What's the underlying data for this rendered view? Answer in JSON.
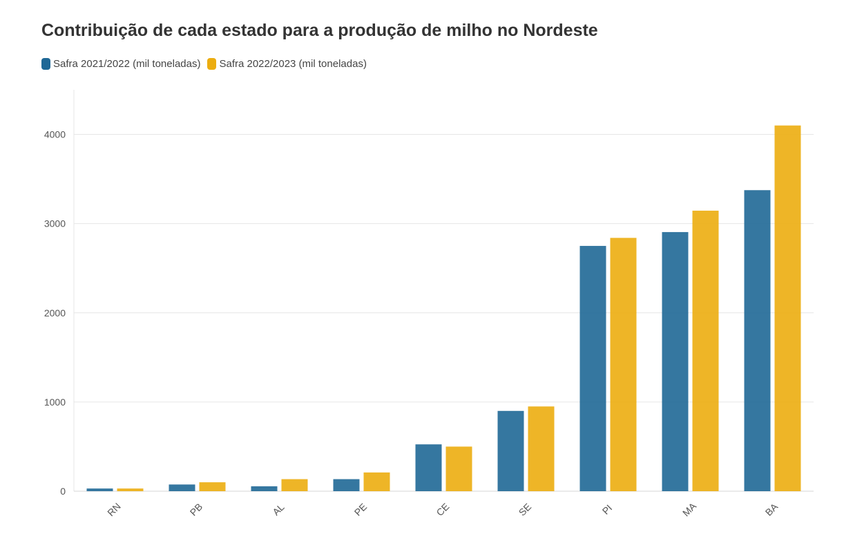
{
  "chart_data": {
    "type": "bar",
    "title": "Contribuição de cada estado para a produção de milho no Nordeste",
    "categories": [
      "RN",
      "PB",
      "AL",
      "PE",
      "CE",
      "SE",
      "PI",
      "MA",
      "BA"
    ],
    "series": [
      {
        "name": "Safra 2021/2022 (mil toneladas)",
        "color": "#1f6896",
        "values": [
          30,
          75,
          55,
          135,
          525,
          900,
          2750,
          2905,
          3375
        ]
      },
      {
        "name": "Safra 2022/2023 (mil toneladas)",
        "color": "#ecad10",
        "values": [
          30,
          100,
          135,
          210,
          500,
          950,
          2840,
          3145,
          4100
        ]
      }
    ],
    "xlabel": "",
    "ylabel": "",
    "ylim": [
      0,
      4500
    ],
    "yticks": [
      0,
      1000,
      2000,
      3000,
      4000
    ],
    "grid": true,
    "legend": "top-left"
  }
}
